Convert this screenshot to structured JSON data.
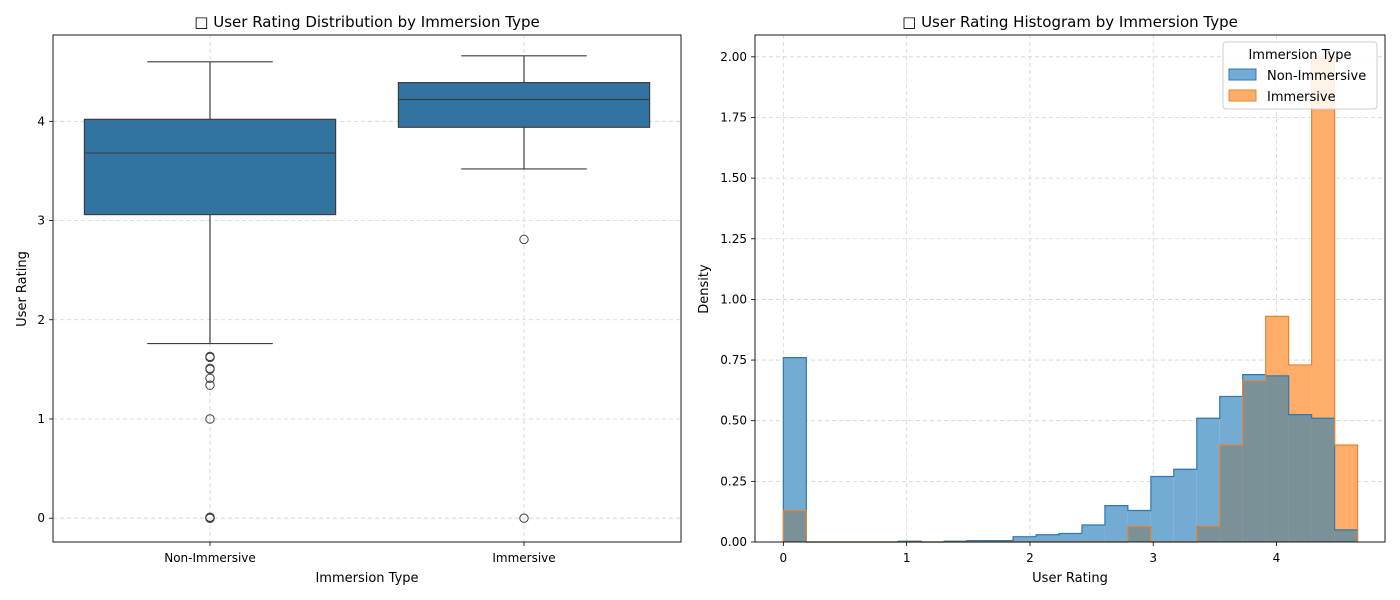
{
  "chart_data": [
    {
      "type": "box",
      "title": "□ User Rating Distribution by Immersion Type",
      "xlabel": "Immersion Type",
      "ylabel": "User Rating",
      "ylim": [
        -0.24,
        4.87
      ],
      "yticks": [
        0,
        1,
        2,
        3,
        4
      ],
      "grid": true,
      "categories": [
        "Non-Immersive",
        "Immersive"
      ],
      "color": "#3274a1",
      "boxes": [
        {
          "name": "Non-Immersive",
          "whisker_low": 1.76,
          "q1": 3.06,
          "median": 3.68,
          "q3": 4.02,
          "whisker_high": 4.6,
          "outliers": [
            1.63,
            1.62,
            1.51,
            1.5,
            1.41,
            1.34,
            1.0,
            0.01,
            0.0,
            0.0,
            0.0
          ]
        },
        {
          "name": "Immersive",
          "whisker_low": 3.52,
          "q1": 3.94,
          "median": 4.22,
          "q3": 4.39,
          "whisker_high": 4.66,
          "outliers": [
            2.81,
            0.0
          ]
        }
      ]
    },
    {
      "type": "histogram",
      "title": "□ User Rating Histogram by Immersion Type",
      "xlabel": "User Rating",
      "ylabel": "Density",
      "xlim": [
        -0.23,
        4.88
      ],
      "ylim": [
        0,
        2.09
      ],
      "xticks": [
        0,
        1,
        2,
        3,
        4
      ],
      "yticks": [
        0.0,
        0.25,
        0.5,
        0.75,
        1.0,
        1.25,
        1.5,
        1.75,
        2.0
      ],
      "ytick_labels": [
        "0.00",
        "0.25",
        "0.50",
        "0.75",
        "1.00",
        "1.25",
        "1.50",
        "1.75",
        "2.00"
      ],
      "grid": true,
      "bin_edges": [
        0.0,
        0.1863,
        0.3726,
        0.5589,
        0.7452,
        0.9315,
        1.1178,
        1.3041,
        1.4904,
        1.6767,
        1.863,
        2.0493,
        2.2356,
        2.4219,
        2.6082,
        2.7945,
        2.9808,
        3.1671,
        3.3534,
        3.5397,
        3.726,
        3.9123,
        4.0986,
        4.2849,
        4.4712,
        4.6575
      ],
      "legend": {
        "title": "Immersion Type",
        "position": "top-right"
      },
      "series": [
        {
          "name": "Non-Immersive",
          "fill": "#74abd2",
          "stroke": "#2f78b2",
          "values": [
            0.76,
            0.0,
            0.0,
            0.0,
            0.0,
            0.003,
            0.0,
            0.003,
            0.006,
            0.006,
            0.022,
            0.03,
            0.035,
            0.07,
            0.15,
            0.13,
            0.27,
            0.3,
            0.51,
            0.6,
            0.69,
            0.685,
            0.525,
            0.51,
            0.05
          ]
        },
        {
          "name": "Immersive",
          "fill": "#ffad68",
          "stroke": "#e58533",
          "values": [
            0.13,
            0.0,
            0.0,
            0.0,
            0.0,
            0.0,
            0.0,
            0.0,
            0.0,
            0.0,
            0.0,
            0.0,
            0.0,
            0.0,
            0.0,
            0.065,
            0.0,
            0.0,
            0.065,
            0.4,
            0.665,
            0.93,
            0.73,
            2.0,
            0.4
          ]
        }
      ],
      "overlap_color": "#7a9198"
    }
  ]
}
